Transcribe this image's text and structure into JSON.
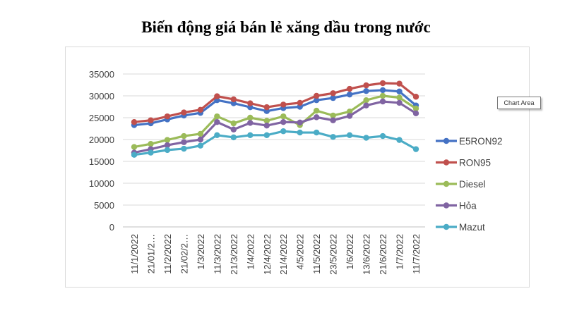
{
  "chart_area_tooltip": "Chart Area",
  "chart_data": {
    "type": "line",
    "title": "Biến động giá bán lẻ xăng dầu trong nước",
    "xlabel": "",
    "ylabel": "",
    "ylim": [
      0,
      35000
    ],
    "yticks": [
      0,
      5000,
      10000,
      15000,
      20000,
      25000,
      30000,
      35000
    ],
    "grid": true,
    "legend_position": "right",
    "categories": [
      "11/1/2022",
      "21/01/2…",
      "11/2/2022",
      "21/02/2…",
      "1/3/2022",
      "11/3/2022",
      "21/3/2022",
      "1/4/2022",
      "12/4/2022",
      "21/4/2022",
      "4/5/2022",
      "11/5/2022",
      "23/5/2022",
      "1/6/2022",
      "13/6/2022",
      "21/6/2022",
      "1/7/2022",
      "11/7/2022"
    ],
    "series": [
      {
        "name": "E5RON92",
        "color": "#4472c4",
        "values": [
          23300,
          23700,
          24600,
          25500,
          26100,
          29000,
          28300,
          27400,
          26500,
          27200,
          27500,
          29000,
          29500,
          30300,
          31100,
          31300,
          31000,
          27800
        ]
      },
      {
        "name": "RON95",
        "color": "#c0504d",
        "values": [
          24000,
          24400,
          25300,
          26200,
          26800,
          29900,
          29200,
          28300,
          27400,
          28000,
          28400,
          30000,
          30600,
          31600,
          32400,
          32900,
          32800,
          29800
        ]
      },
      {
        "name": "Diesel",
        "color": "#9bbb59",
        "values": [
          18300,
          19000,
          19900,
          20800,
          21300,
          25300,
          23700,
          25000,
          24300,
          25300,
          23300,
          26600,
          25500,
          26400,
          29000,
          30000,
          29600,
          27100
        ]
      },
      {
        "name": "Hỏa",
        "color": "#8064a2",
        "values": [
          17000,
          17800,
          18700,
          19400,
          20000,
          24000,
          22300,
          23800,
          23200,
          24000,
          23900,
          25100,
          24400,
          25400,
          27800,
          28700,
          28400,
          26000
        ]
      },
      {
        "name": "Mazut",
        "color": "#4bacc6",
        "values": [
          16500,
          17000,
          17600,
          17900,
          18600,
          21000,
          20500,
          21000,
          21000,
          21900,
          21600,
          21600,
          20600,
          21000,
          20400,
          20800,
          19900,
          17800
        ]
      }
    ]
  }
}
